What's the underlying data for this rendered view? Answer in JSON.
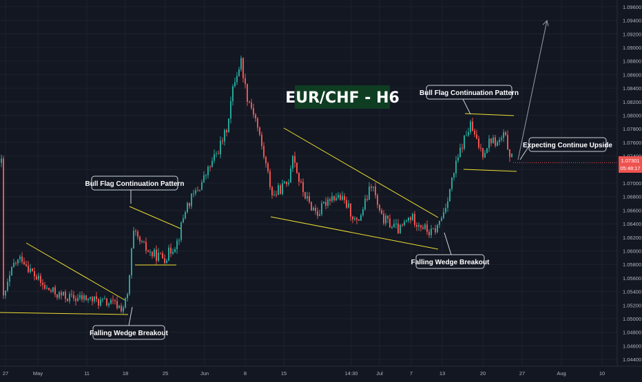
{
  "chart_data": {
    "type": "candlestick",
    "title": "EUR/CHF - H6",
    "colors": {
      "up": "#26a69a",
      "down": "#ef5350",
      "background": "#131722",
      "grid": "#1e222d",
      "pattern": "#f0e030",
      "title_bg": "#0f3d22",
      "projection": "#9aa0ab"
    },
    "ylim": [
      1.043,
      1.097
    ],
    "xlim": [
      0,
      932
    ],
    "y_ticks": [
      "1.09600",
      "1.09400",
      "1.09200",
      "1.09000",
      "1.08800",
      "1.08600",
      "1.08400",
      "1.08200",
      "1.08000",
      "1.07800",
      "1.07600",
      "1.07400",
      "1.07200",
      "1.07000",
      "1.06800",
      "1.06600",
      "1.06400",
      "1.06200",
      "1.06000",
      "1.05800",
      "1.05600",
      "1.05400",
      "1.05200",
      "1.05000",
      "1.04800",
      "1.04600",
      "1.04400"
    ],
    "x_ticks": [
      "27",
      "May",
      "11",
      "18",
      "25",
      "Jun",
      "8",
      "15",
      "14:30",
      "Jul",
      "7",
      "13",
      "20",
      "27",
      "Aug",
      "10"
    ],
    "last_price": "1.07301",
    "countdown": "05:48:17",
    "annotations": [
      "Bull Flag Continuation Pattern",
      "Falling Wedge Breakout",
      "Bull Flag Continuation Pattern",
      "Falling Wedge Breakout",
      "Expecting Continue Upside"
    ],
    "anchors": [
      [
        5,
        1.053
      ],
      [
        20,
        1.058
      ],
      [
        32,
        1.059
      ],
      [
        45,
        1.057
      ],
      [
        65,
        1.0545
      ],
      [
        85,
        1.0535
      ],
      [
        105,
        1.053
      ],
      [
        125,
        1.053
      ],
      [
        145,
        1.0525
      ],
      [
        165,
        1.0522
      ],
      [
        178,
        1.0515
      ],
      [
        186,
        1.0535
      ],
      [
        190,
        1.059
      ],
      [
        194,
        1.0625
      ],
      [
        205,
        1.061
      ],
      [
        220,
        1.0595
      ],
      [
        240,
        1.059
      ],
      [
        258,
        1.0615
      ],
      [
        270,
        1.0665
      ],
      [
        290,
        1.0695
      ],
      [
        315,
        1.0745
      ],
      [
        328,
        1.0775
      ],
      [
        340,
        1.085
      ],
      [
        350,
        1.088
      ],
      [
        358,
        1.083
      ],
      [
        370,
        1.08
      ],
      [
        382,
        1.0745
      ],
      [
        396,
        1.068
      ],
      [
        405,
        1.069
      ],
      [
        418,
        1.07
      ],
      [
        425,
        1.0745
      ],
      [
        435,
        1.07
      ],
      [
        448,
        1.067
      ],
      [
        462,
        1.0655
      ],
      [
        478,
        1.068
      ],
      [
        492,
        1.068
      ],
      [
        505,
        1.0665
      ],
      [
        518,
        1.064
      ],
      [
        530,
        1.067
      ],
      [
        540,
        1.07
      ],
      [
        552,
        1.065
      ],
      [
        566,
        1.064
      ],
      [
        580,
        1.063
      ],
      [
        595,
        1.065
      ],
      [
        610,
        1.064
      ],
      [
        625,
        1.0625
      ],
      [
        635,
        1.0635
      ],
      [
        645,
        1.066
      ],
      [
        655,
        1.07
      ],
      [
        663,
        1.073
      ],
      [
        672,
        1.076
      ],
      [
        683,
        1.0785
      ],
      [
        692,
        1.076
      ],
      [
        701,
        1.0745
      ],
      [
        712,
        1.0765
      ],
      [
        722,
        1.0758
      ],
      [
        732,
        1.077
      ],
      [
        740,
        1.0745
      ],
      [
        745,
        1.073
      ]
    ]
  }
}
